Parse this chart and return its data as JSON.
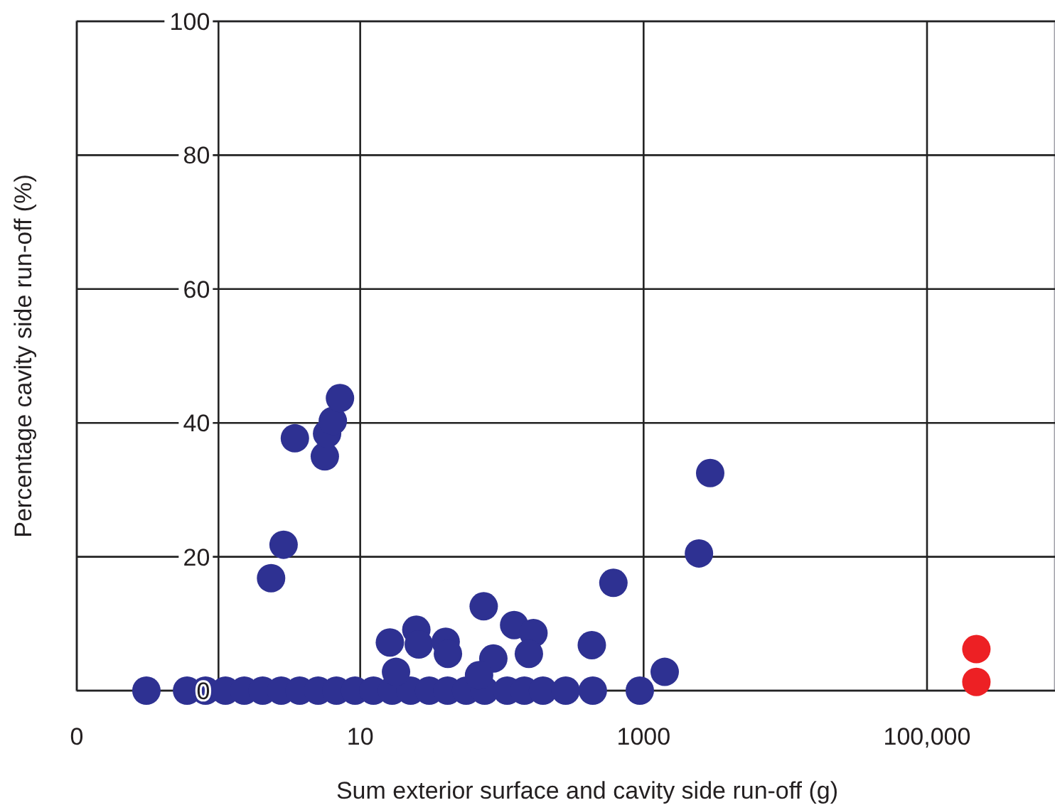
{
  "chart_data": {
    "type": "scatter",
    "xlabel": "Sum exterior surface and cavity side run-off (g)",
    "ylabel": "Percentage cavity side run-off (%)",
    "log": "x",
    "xlim": [
      0.1,
      800000
    ],
    "xticks": [
      {
        "value": 0.1,
        "label": "0"
      },
      10,
      1000,
      {
        "value": 100000,
        "label": "100,000"
      }
    ],
    "ylim": [
      0,
      100
    ],
    "yticks": [
      0,
      20,
      40,
      60,
      80,
      100
    ],
    "grid": true,
    "marker": "circle",
    "ref_lines": [
      {
        "axis": "x",
        "value": 1,
        "label": null
      }
    ],
    "series": [
      {
        "color": "#2e3192",
        "x": [
          0.31,
          0.6,
          0.81,
          1.12,
          1.52,
          2.05,
          2.77,
          3.74,
          5.05,
          6.8,
          9.2,
          12.4,
          16.8,
          22.7,
          30.7,
          41.4,
          56,
          75.6,
          109,
          144,
          195,
          282,
          438,
          940,
          2.35,
          2.88,
          3.46,
          5.63,
          5.84,
          6.41,
          7.2,
          16.2,
          17.9,
          24.9,
          25.9,
          40.1,
          41.6,
          74.4,
          87,
          122,
          69,
          167,
          155,
          431,
          612,
          1409,
          2458,
          2950
        ],
        "values": [
          0,
          0,
          0,
          0,
          0,
          0,
          0,
          0,
          0,
          0,
          0,
          0,
          0,
          0,
          0,
          0,
          0,
          0,
          0,
          0,
          0,
          0,
          0,
          0,
          16.8,
          21.8,
          37.7,
          35.0,
          38.4,
          40.3,
          43.7,
          7.2,
          2.8,
          9.1,
          6.9,
          7.3,
          5.5,
          12.6,
          4.8,
          9.8,
          2.3,
          8.6,
          5.5,
          6.8,
          16.1,
          2.8,
          20.5,
          32.5
        ]
      },
      {
        "color": "#ed2024",
        "x": [
          223000,
          223000
        ],
        "values": [
          6.2,
          1.3
        ]
      }
    ]
  }
}
